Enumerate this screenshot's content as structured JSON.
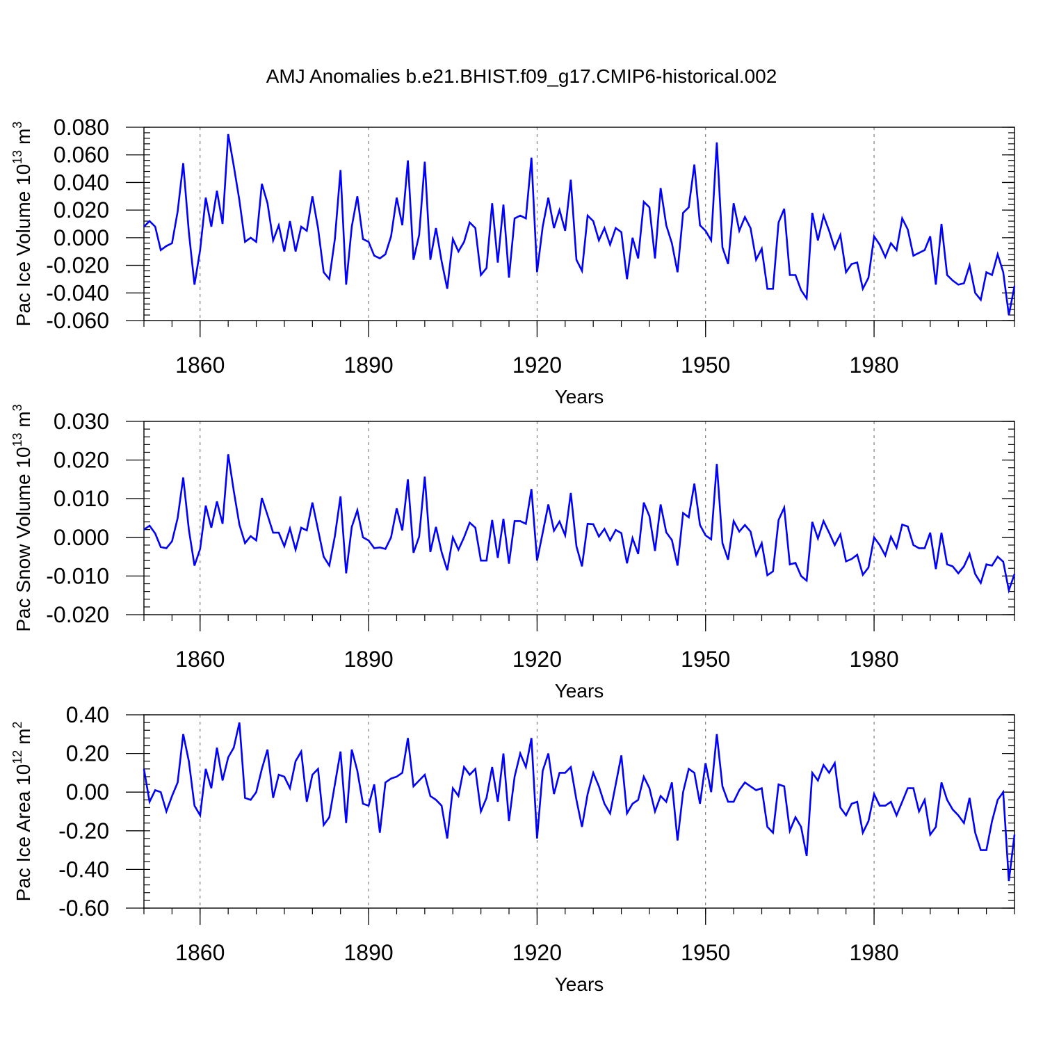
{
  "title": "AMJ Anomalies b.e21.BHIST.f09_g17.CMIP6-historical.002",
  "colors": {
    "series": "#0000ff",
    "axis": "#000000",
    "grid": "#000000"
  },
  "chart_data": [
    {
      "type": "line",
      "xlabel": "Years",
      "ylabel_main": "Pac Ice Volume 10",
      "ylabel_exp": "13",
      "ylabel_unit": " m",
      "ylabel_unit_exp": "3",
      "xlim": [
        1850,
        2005
      ],
      "ylim": [
        -0.06,
        0.08
      ],
      "x_ticks": [
        1860,
        1890,
        1920,
        1950,
        1980
      ],
      "y_ticks": [
        "0.080",
        "0.060",
        "0.040",
        "0.020",
        "0.000",
        "-0.020",
        "-0.040",
        "-0.060"
      ],
      "y_tick_values": [
        0.08,
        0.06,
        0.04,
        0.02,
        0.0,
        -0.02,
        -0.04,
        -0.06
      ],
      "x_start": 1850,
      "values": [
        0.008,
        0.012,
        0.008,
        -0.009,
        -0.006,
        -0.004,
        0.019,
        0.054,
        0.004,
        -0.034,
        -0.009,
        0.029,
        0.008,
        0.034,
        0.01,
        0.075,
        0.052,
        0.027,
        -0.003,
        0.0,
        -0.003,
        0.039,
        0.025,
        -0.002,
        0.009,
        -0.01,
        0.012,
        -0.01,
        0.008,
        0.005,
        0.03,
        0.007,
        -0.025,
        -0.03,
        -0.001,
        0.049,
        -0.034,
        0.008,
        0.03,
        -0.001,
        -0.003,
        -0.013,
        -0.015,
        -0.012,
        0.001,
        0.029,
        0.009,
        0.056,
        -0.016,
        0.002,
        0.055,
        -0.016,
        0.007,
        -0.017,
        -0.037,
        -0.001,
        -0.01,
        -0.003,
        0.011,
        0.007,
        -0.027,
        -0.022,
        0.025,
        -0.018,
        0.024,
        -0.029,
        0.014,
        0.016,
        0.014,
        0.058,
        -0.025,
        0.008,
        0.029,
        0.007,
        0.02,
        0.005,
        0.042,
        -0.016,
        -0.024,
        0.016,
        0.012,
        -0.002,
        0.007,
        -0.005,
        0.007,
        0.004,
        -0.03,
        0.0,
        -0.015,
        0.026,
        0.022,
        -0.015,
        0.036,
        0.009,
        -0.004,
        -0.025,
        0.018,
        0.022,
        0.053,
        0.009,
        0.005,
        -0.002,
        0.069,
        -0.007,
        -0.019,
        0.025,
        0.005,
        0.015,
        0.007,
        -0.016,
        -0.008,
        -0.037,
        -0.037,
        0.011,
        0.021,
        -0.027,
        -0.027,
        -0.038,
        -0.044,
        0.018,
        -0.002,
        0.016,
        0.005,
        -0.008,
        0.002,
        -0.025,
        -0.019,
        -0.018,
        -0.037,
        -0.029,
        0.001,
        -0.005,
        -0.014,
        -0.004,
        -0.009,
        0.014,
        0.006,
        -0.013,
        -0.011,
        -0.009,
        0.001,
        -0.034,
        0.01,
        -0.027,
        -0.031,
        -0.034,
        -0.033,
        -0.02,
        -0.04,
        -0.045,
        -0.025,
        -0.027,
        -0.012,
        -0.025,
        -0.056,
        -0.035
      ]
    },
    {
      "type": "line",
      "xlabel": "Years",
      "ylabel_main": "Pac Snow Volume 10",
      "ylabel_exp": "13",
      "ylabel_unit": " m",
      "ylabel_unit_exp": "3",
      "xlim": [
        1850,
        2005
      ],
      "ylim": [
        -0.02,
        0.03
      ],
      "x_ticks": [
        1860,
        1890,
        1920,
        1950,
        1980
      ],
      "y_ticks": [
        "0.030",
        "0.020",
        "0.010",
        "0.000",
        "-0.010",
        "-0.020"
      ],
      "y_tick_values": [
        0.03,
        0.02,
        0.01,
        0.0,
        -0.01,
        -0.02
      ],
      "x_start": 1850,
      "values": [
        0.002,
        0.003,
        0.001,
        -0.0025,
        -0.0028,
        -0.001,
        0.005,
        0.0155,
        0.002,
        -0.0073,
        -0.003,
        0.0082,
        0.0025,
        0.0093,
        0.0035,
        0.0215,
        0.012,
        0.0033,
        -0.0015,
        0.0003,
        -0.0008,
        0.0102,
        0.0058,
        0.0012,
        0.0012,
        -0.0023,
        0.0023,
        -0.0032,
        0.0025,
        0.0018,
        0.009,
        0.002,
        -0.005,
        -0.0073,
        0.0003,
        0.0106,
        -0.0093,
        0.0027,
        0.007,
        0.0,
        -0.0008,
        -0.0028,
        -0.0026,
        -0.003,
        0.0,
        0.0075,
        0.0018,
        0.015,
        -0.004,
        0.0002,
        0.0157,
        -0.0038,
        0.0027,
        -0.0038,
        -0.0085,
        0.0,
        -0.0032,
        0.0,
        0.0038,
        0.0025,
        -0.006,
        -0.006,
        0.0045,
        -0.0053,
        0.0048,
        -0.0068,
        0.0042,
        0.0042,
        0.0035,
        0.0125,
        -0.006,
        0.0012,
        0.0085,
        0.0017,
        0.0041,
        0.0005,
        0.0115,
        -0.0023,
        -0.0075,
        0.0035,
        0.0034,
        0.0002,
        0.0022,
        -0.0008,
        0.0019,
        0.0011,
        -0.0067,
        -0.0002,
        -0.0043,
        0.009,
        0.0055,
        -0.0035,
        0.0085,
        0.0013,
        -0.0007,
        -0.0073,
        0.0063,
        0.0052,
        0.0139,
        0.0032,
        0.0005,
        -0.0005,
        0.019,
        -0.0015,
        -0.0058,
        0.0042,
        0.0015,
        0.0032,
        0.0015,
        -0.0047,
        -0.0015,
        -0.0098,
        -0.0088,
        0.0045,
        0.0077,
        -0.007,
        -0.0066,
        -0.01,
        -0.0112,
        0.004,
        -0.0003,
        0.0042,
        0.0012,
        -0.002,
        0.0008,
        -0.0062,
        -0.0056,
        -0.0045,
        -0.0097,
        -0.0078,
        0.0,
        -0.002,
        -0.0047,
        0.0002,
        -0.0027,
        0.0033,
        0.0028,
        -0.002,
        -0.0028,
        -0.0028,
        0.0012,
        -0.0082,
        0.0012,
        -0.007,
        -0.0075,
        -0.0093,
        -0.0075,
        -0.0043,
        -0.0095,
        -0.0118,
        -0.007,
        -0.0073,
        -0.005,
        -0.0063,
        -0.0137,
        -0.0095
      ]
    },
    {
      "type": "line",
      "xlabel": "Years",
      "ylabel_main": "Pac Ice Area 10",
      "ylabel_exp": "12",
      "ylabel_unit": " m",
      "ylabel_unit_exp": "2",
      "xlim": [
        1850,
        2005
      ],
      "ylim": [
        -0.6,
        0.4
      ],
      "x_ticks": [
        1860,
        1890,
        1920,
        1950,
        1980
      ],
      "y_ticks": [
        "0.40",
        "0.20",
        "0.00",
        "-0.20",
        "-0.40",
        "-0.60"
      ],
      "y_tick_values": [
        0.4,
        0.2,
        0.0,
        -0.2,
        -0.4,
        -0.6
      ],
      "x_start": 1850,
      "values": [
        0.12,
        -0.05,
        0.01,
        0.0,
        -0.1,
        -0.02,
        0.05,
        0.3,
        0.16,
        -0.07,
        -0.12,
        0.12,
        0.02,
        0.23,
        0.06,
        0.18,
        0.23,
        0.36,
        -0.03,
        -0.04,
        0.0,
        0.12,
        0.22,
        -0.03,
        0.09,
        0.08,
        0.02,
        0.16,
        0.21,
        -0.05,
        0.09,
        0.12,
        -0.17,
        -0.13,
        0.04,
        0.21,
        -0.16,
        0.22,
        0.11,
        -0.06,
        -0.07,
        0.04,
        -0.21,
        0.05,
        0.07,
        0.08,
        0.1,
        0.28,
        0.03,
        0.06,
        0.09,
        -0.02,
        -0.04,
        -0.07,
        -0.24,
        0.02,
        -0.02,
        0.13,
        0.09,
        0.12,
        -0.1,
        -0.03,
        0.13,
        -0.05,
        0.2,
        -0.15,
        0.08,
        0.2,
        0.13,
        0.28,
        -0.24,
        0.11,
        0.2,
        -0.01,
        0.1,
        0.1,
        0.13,
        -0.04,
        -0.18,
        -0.01,
        0.1,
        0.03,
        -0.06,
        -0.11,
        0.04,
        0.19,
        -0.11,
        -0.06,
        -0.04,
        0.08,
        0.02,
        -0.1,
        -0.02,
        -0.05,
        0.05,
        -0.25,
        0.0,
        0.12,
        0.1,
        -0.06,
        0.15,
        0.0,
        0.3,
        0.03,
        -0.05,
        -0.05,
        0.01,
        0.05,
        0.03,
        0.01,
        0.02,
        -0.18,
        -0.21,
        0.04,
        0.03,
        -0.2,
        -0.13,
        -0.18,
        -0.33,
        0.1,
        0.06,
        0.14,
        0.1,
        0.15,
        -0.08,
        -0.12,
        -0.06,
        -0.05,
        -0.21,
        -0.15,
        -0.01,
        -0.07,
        -0.07,
        -0.05,
        -0.12,
        -0.05,
        0.02,
        0.02,
        -0.1,
        -0.04,
        -0.22,
        -0.18,
        0.05,
        -0.04,
        -0.09,
        -0.12,
        -0.16,
        -0.03,
        -0.21,
        -0.3,
        -0.3,
        -0.15,
        -0.04,
        0.0,
        -0.46,
        -0.22
      ]
    }
  ]
}
